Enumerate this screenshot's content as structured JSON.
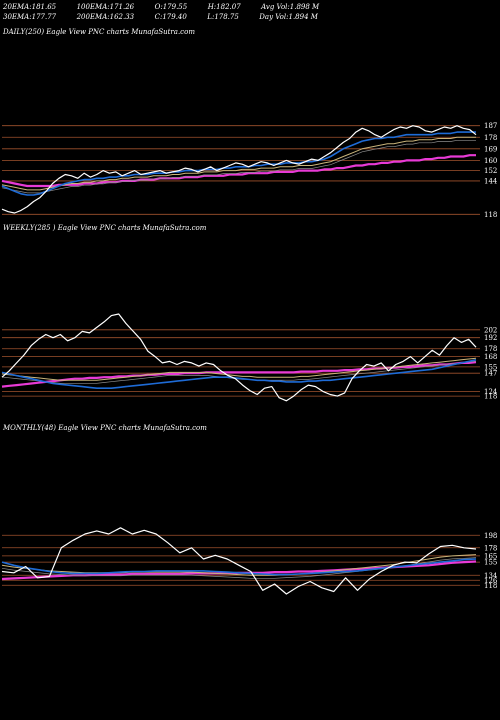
{
  "header": {
    "row1": [
      {
        "label": "20EMA:",
        "value": "181.65"
      },
      {
        "label": "100EMA:",
        "value": "171.26"
      },
      {
        "label": "O:",
        "value": "179.55"
      },
      {
        "label": "H:",
        "value": "182.07"
      },
      {
        "label": "Avg Vol:",
        "value": "1.898 M"
      }
    ],
    "row2": [
      {
        "label": "30EMA:",
        "value": "177.77"
      },
      {
        "label": "200EMA:",
        "value": "162.33"
      },
      {
        "label": "C:",
        "value": "179.40"
      },
      {
        "label": "L:",
        "value": "178.75"
      },
      {
        "label": "Day Vol:",
        "value": "1.894 M"
      }
    ]
  },
  "colors": {
    "background": "#000000",
    "grid": "#a0522d",
    "price": "#ffffff",
    "ema_fast": "#1e6bd6",
    "ema_slow": "#e83ad6",
    "ema_mid": "#c9b47a"
  },
  "chart_data": [
    {
      "type": "line",
      "title": "DAILY(250) Eagle  View  PNC charts MunafaSutra.com",
      "ytick_labels": [
        "187",
        "178",
        "169",
        "160",
        "152",
        "144",
        "118"
      ],
      "ytick_values": [
        187,
        178,
        169,
        160,
        152,
        144,
        118
      ],
      "ylim": [
        112,
        193
      ],
      "series": [
        {
          "role": "price",
          "values": [
            122,
            120,
            119,
            121,
            124,
            128,
            131,
            136,
            142,
            146,
            149,
            148,
            146,
            150,
            147,
            149,
            152,
            150,
            151,
            148,
            150,
            152,
            149,
            150,
            151,
            152,
            150,
            151,
            152,
            154,
            153,
            151,
            153,
            155,
            152,
            154,
            156,
            158,
            157,
            155,
            157,
            159,
            158,
            156,
            158,
            160,
            158,
            157,
            159,
            161,
            160,
            163,
            166,
            170,
            174,
            177,
            182,
            185,
            183,
            180,
            178,
            181,
            184,
            186,
            185,
            187,
            186,
            183,
            182,
            184,
            186,
            185,
            187,
            185,
            184,
            180
          ]
        },
        {
          "role": "ema_fast",
          "values": [
            140,
            138,
            136,
            134,
            133,
            133,
            134,
            136,
            138,
            140,
            142,
            143,
            144,
            145,
            145,
            146,
            146,
            147,
            147,
            148,
            148,
            149,
            149,
            149,
            150,
            150,
            150,
            151,
            151,
            152,
            152,
            152,
            153,
            153,
            153,
            154,
            154,
            155,
            155,
            155,
            156,
            156,
            157,
            157,
            157,
            158,
            158,
            158,
            159,
            159,
            160,
            161,
            163,
            166,
            169,
            171,
            173,
            175,
            176,
            177,
            177,
            178,
            178,
            179,
            180,
            180,
            180,
            180,
            180,
            181,
            181,
            181,
            182,
            182,
            182,
            182
          ]
        },
        {
          "role": "ema_mid",
          "values": [
            141,
            140,
            139,
            138,
            137,
            137,
            137,
            138,
            139,
            140,
            141,
            142,
            142,
            143,
            143,
            144,
            144,
            145,
            145,
            146,
            146,
            147,
            147,
            147,
            148,
            148,
            148,
            149,
            149,
            150,
            150,
            150,
            151,
            151,
            151,
            152,
            152,
            152,
            153,
            153,
            153,
            154,
            154,
            154,
            155,
            155,
            155,
            156,
            156,
            156,
            157,
            158,
            159,
            161,
            163,
            165,
            167,
            169,
            170,
            171,
            172,
            173,
            173,
            174,
            175,
            175,
            176,
            176,
            176,
            177,
            177,
            177,
            178,
            178,
            178,
            178
          ]
        },
        {
          "role": "ema_slow",
          "values": [
            144,
            143,
            142,
            141,
            140,
            140,
            140,
            140,
            140,
            141,
            141,
            141,
            141,
            142,
            142,
            142,
            143,
            143,
            143,
            144,
            144,
            144,
            145,
            145,
            145,
            146,
            146,
            146,
            146,
            147,
            147,
            147,
            148,
            148,
            148,
            148,
            149,
            149,
            149,
            150,
            150,
            150,
            150,
            151,
            151,
            151,
            151,
            152,
            152,
            152,
            152,
            153,
            153,
            154,
            154,
            155,
            156,
            156,
            157,
            157,
            158,
            158,
            159,
            159,
            160,
            160,
            160,
            161,
            161,
            162,
            162,
            163,
            163,
            163,
            164,
            164
          ]
        }
      ]
    },
    {
      "type": "line",
      "title": "WEEKLY(285             ) Eagle  View  PNC charts MunafaSutra.com",
      "ytick_labels": [
        "202",
        "192",
        "178",
        "168",
        "155",
        "147",
        "124",
        "118"
      ],
      "ytick_values": [
        202,
        192,
        178,
        168,
        155,
        147,
        124,
        118
      ],
      "ylim": [
        108,
        260
      ],
      "series": [
        {
          "role": "price",
          "values": [
            142,
            150,
            160,
            170,
            182,
            190,
            196,
            192,
            196,
            188,
            192,
            200,
            198,
            205,
            212,
            220,
            222,
            210,
            200,
            190,
            175,
            168,
            160,
            162,
            158,
            162,
            160,
            156,
            160,
            158,
            150,
            144,
            140,
            132,
            125,
            120,
            128,
            130,
            116,
            112,
            118,
            126,
            132,
            130,
            124,
            120,
            118,
            122,
            140,
            150,
            158,
            156,
            160,
            150,
            158,
            162,
            168,
            160,
            168,
            176,
            170,
            182,
            192,
            186,
            190,
            180
          ]
        },
        {
          "role": "ema_fast",
          "values": [
            148,
            146,
            144,
            142,
            140,
            138,
            136,
            134,
            133,
            132,
            131,
            130,
            129,
            128,
            128,
            128,
            129,
            130,
            131,
            132,
            133,
            134,
            135,
            136,
            137,
            138,
            139,
            140,
            141,
            142,
            142,
            142,
            141,
            140,
            139,
            138,
            138,
            137,
            137,
            136,
            136,
            136,
            137,
            137,
            138,
            138,
            139,
            140,
            141,
            142,
            143,
            144,
            145,
            146,
            147,
            148,
            149,
            150,
            151,
            152,
            154,
            156,
            158,
            160,
            162,
            164
          ]
        },
        {
          "role": "ema_mid",
          "values": [
            146,
            145,
            144,
            143,
            142,
            141,
            140,
            139,
            138,
            138,
            138,
            138,
            138,
            138,
            139,
            140,
            141,
            142,
            143,
            144,
            145,
            146,
            147,
            148,
            148,
            148,
            148,
            148,
            148,
            147,
            146,
            145,
            144,
            143,
            143,
            142,
            142,
            142,
            142,
            142,
            142,
            143,
            143,
            144,
            145,
            146,
            147,
            148,
            149,
            150,
            151,
            152,
            153,
            154,
            155,
            156,
            157,
            158,
            159,
            160,
            161,
            162,
            163,
            164,
            165,
            166
          ]
        },
        {
          "role": "ema_slow",
          "values": [
            130,
            131,
            132,
            133,
            134,
            135,
            136,
            137,
            138,
            139,
            140,
            140,
            141,
            141,
            142,
            142,
            143,
            143,
            144,
            144,
            145,
            145,
            146,
            146,
            146,
            147,
            147,
            147,
            148,
            148,
            148,
            148,
            148,
            148,
            148,
            148,
            148,
            148,
            148,
            148,
            148,
            149,
            149,
            149,
            150,
            150,
            150,
            151,
            151,
            152,
            152,
            153,
            153,
            154,
            154,
            155,
            155,
            156,
            157,
            157,
            158,
            158,
            159,
            160,
            160,
            161
          ]
        }
      ]
    },
    {
      "type": "line",
      "title": "MONTHLY(48) Eagle  View  PNC charts MunafaSutra.com",
      "ytick_labels": [
        "198",
        "178",
        "165",
        "155",
        "134",
        "126",
        "118"
      ],
      "ytick_values": [
        198,
        178,
        165,
        155,
        134,
        126,
        118
      ],
      "ylim": [
        80,
        240
      ],
      "series": [
        {
          "role": "price",
          "values": [
            140,
            138,
            148,
            130,
            132,
            178,
            190,
            200,
            205,
            200,
            210,
            200,
            206,
            200,
            186,
            170,
            178,
            160,
            166,
            160,
            150,
            140,
            110,
            120,
            104,
            116,
            124,
            114,
            108,
            130,
            110,
            128,
            140,
            150,
            155,
            154,
            168,
            180,
            182,
            178,
            176
          ]
        },
        {
          "role": "ema_fast",
          "values": [
            155,
            150,
            146,
            143,
            140,
            138,
            137,
            137,
            137,
            138,
            139,
            140,
            140,
            141,
            141,
            141,
            141,
            141,
            140,
            139,
            138,
            137,
            136,
            135,
            135,
            136,
            137,
            138,
            139,
            140,
            141,
            143,
            145,
            147,
            149,
            151,
            153,
            155,
            157,
            159,
            160
          ]
        },
        {
          "role": "ema_mid",
          "values": [
            150,
            147,
            145,
            143,
            141,
            140,
            139,
            138,
            138,
            138,
            138,
            139,
            139,
            139,
            139,
            139,
            139,
            138,
            137,
            136,
            135,
            134,
            134,
            134,
            135,
            136,
            137,
            139,
            141,
            143,
            145,
            147,
            149,
            151,
            154,
            157,
            160,
            163,
            165,
            166,
            167
          ]
        },
        {
          "role": "ema_slow",
          "values": [
            128,
            129,
            130,
            131,
            132,
            133,
            134,
            134,
            135,
            135,
            135,
            136,
            136,
            136,
            136,
            136,
            137,
            137,
            137,
            137,
            138,
            138,
            138,
            139,
            139,
            140,
            140,
            141,
            142,
            143,
            144,
            145,
            146,
            147,
            148,
            149,
            150,
            152,
            154,
            155,
            156
          ]
        }
      ]
    }
  ]
}
